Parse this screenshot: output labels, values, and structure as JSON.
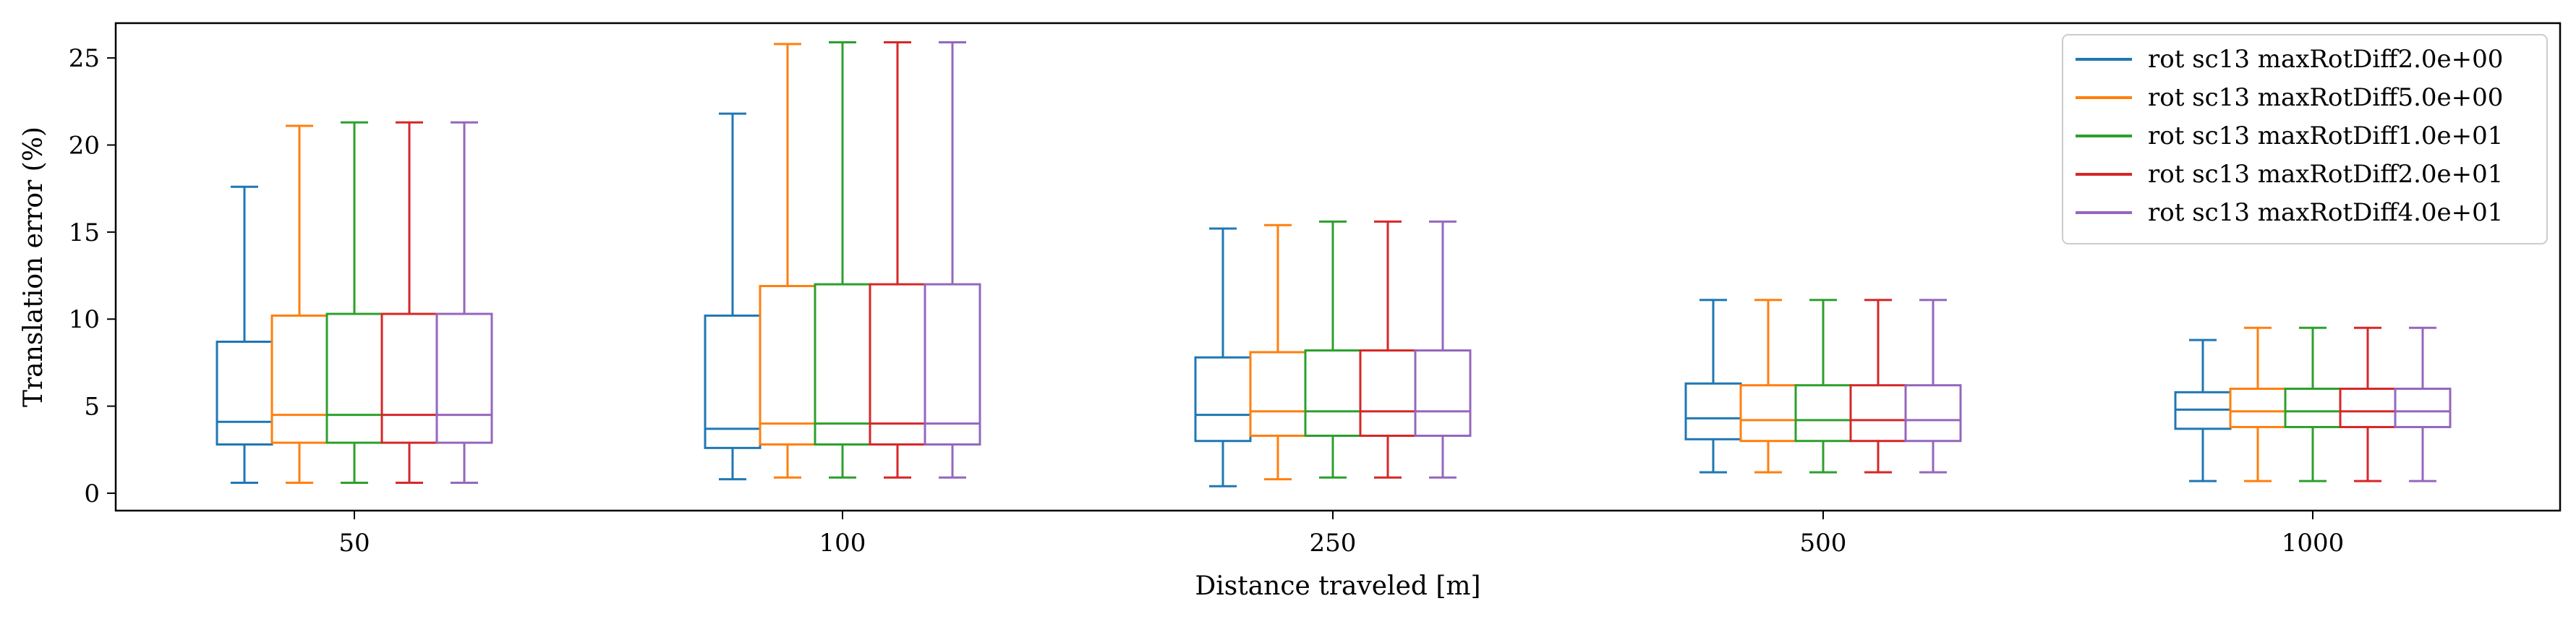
{
  "chart_data": {
    "type": "box",
    "xlabel": "Distance traveled [m]",
    "ylabel": "Translation error (%)",
    "categories": [
      "50",
      "100",
      "250",
      "500",
      "1000"
    ],
    "ylim": [
      -1,
      27
    ],
    "yticks": [
      0,
      5,
      10,
      15,
      20,
      25
    ],
    "grid": false,
    "legend_position": "top-right",
    "series": [
      {
        "name": "rot sc13 maxRotDiff2.0e+00",
        "color": "#1f77b4",
        "boxes": [
          {
            "whislo": 0.6,
            "q1": 2.8,
            "med": 4.1,
            "q3": 8.7,
            "whishi": 17.6
          },
          {
            "whislo": 0.8,
            "q1": 2.6,
            "med": 3.7,
            "q3": 10.2,
            "whishi": 21.8
          },
          {
            "whislo": 0.4,
            "q1": 3.0,
            "med": 4.5,
            "q3": 7.8,
            "whishi": 15.2
          },
          {
            "whislo": 1.2,
            "q1": 3.1,
            "med": 4.3,
            "q3": 6.3,
            "whishi": 11.1
          },
          {
            "whislo": 0.7,
            "q1": 3.7,
            "med": 4.8,
            "q3": 5.8,
            "whishi": 8.8
          }
        ]
      },
      {
        "name": "rot sc13 maxRotDiff5.0e+00",
        "color": "#ff7f0e",
        "boxes": [
          {
            "whislo": 0.6,
            "q1": 2.9,
            "med": 4.5,
            "q3": 10.2,
            "whishi": 21.1
          },
          {
            "whislo": 0.9,
            "q1": 2.8,
            "med": 4.0,
            "q3": 11.9,
            "whishi": 25.8
          },
          {
            "whislo": 0.8,
            "q1": 3.3,
            "med": 4.7,
            "q3": 8.1,
            "whishi": 15.4
          },
          {
            "whislo": 1.2,
            "q1": 3.0,
            "med": 4.2,
            "q3": 6.2,
            "whishi": 11.1
          },
          {
            "whislo": 0.7,
            "q1": 3.8,
            "med": 4.7,
            "q3": 6.0,
            "whishi": 9.5
          }
        ]
      },
      {
        "name": "rot sc13 maxRotDiff1.0e+01",
        "color": "#2ca02c",
        "boxes": [
          {
            "whislo": 0.6,
            "q1": 2.9,
            "med": 4.5,
            "q3": 10.3,
            "whishi": 21.3
          },
          {
            "whislo": 0.9,
            "q1": 2.8,
            "med": 4.0,
            "q3": 12.0,
            "whishi": 25.9
          },
          {
            "whislo": 0.9,
            "q1": 3.3,
            "med": 4.7,
            "q3": 8.2,
            "whishi": 15.6
          },
          {
            "whislo": 1.2,
            "q1": 3.0,
            "med": 4.2,
            "q3": 6.2,
            "whishi": 11.1
          },
          {
            "whislo": 0.7,
            "q1": 3.8,
            "med": 4.7,
            "q3": 6.0,
            "whishi": 9.5
          }
        ]
      },
      {
        "name": "rot sc13 maxRotDiff2.0e+01",
        "color": "#d62728",
        "boxes": [
          {
            "whislo": 0.6,
            "q1": 2.9,
            "med": 4.5,
            "q3": 10.3,
            "whishi": 21.3
          },
          {
            "whislo": 0.9,
            "q1": 2.8,
            "med": 4.0,
            "q3": 12.0,
            "whishi": 25.9
          },
          {
            "whislo": 0.9,
            "q1": 3.3,
            "med": 4.7,
            "q3": 8.2,
            "whishi": 15.6
          },
          {
            "whislo": 1.2,
            "q1": 3.0,
            "med": 4.2,
            "q3": 6.2,
            "whishi": 11.1
          },
          {
            "whislo": 0.7,
            "q1": 3.8,
            "med": 4.7,
            "q3": 6.0,
            "whishi": 9.5
          }
        ]
      },
      {
        "name": "rot sc13 maxRotDiff4.0e+01",
        "color": "#9467bd",
        "boxes": [
          {
            "whislo": 0.6,
            "q1": 2.9,
            "med": 4.5,
            "q3": 10.3,
            "whishi": 21.3
          },
          {
            "whislo": 0.9,
            "q1": 2.8,
            "med": 4.0,
            "q3": 12.0,
            "whishi": 25.9
          },
          {
            "whislo": 0.9,
            "q1": 3.3,
            "med": 4.7,
            "q3": 8.2,
            "whishi": 15.6
          },
          {
            "whislo": 1.2,
            "q1": 3.0,
            "med": 4.2,
            "q3": 6.2,
            "whishi": 11.1
          },
          {
            "whislo": 0.7,
            "q1": 3.8,
            "med": 4.7,
            "q3": 6.0,
            "whishi": 9.5
          }
        ]
      }
    ]
  }
}
